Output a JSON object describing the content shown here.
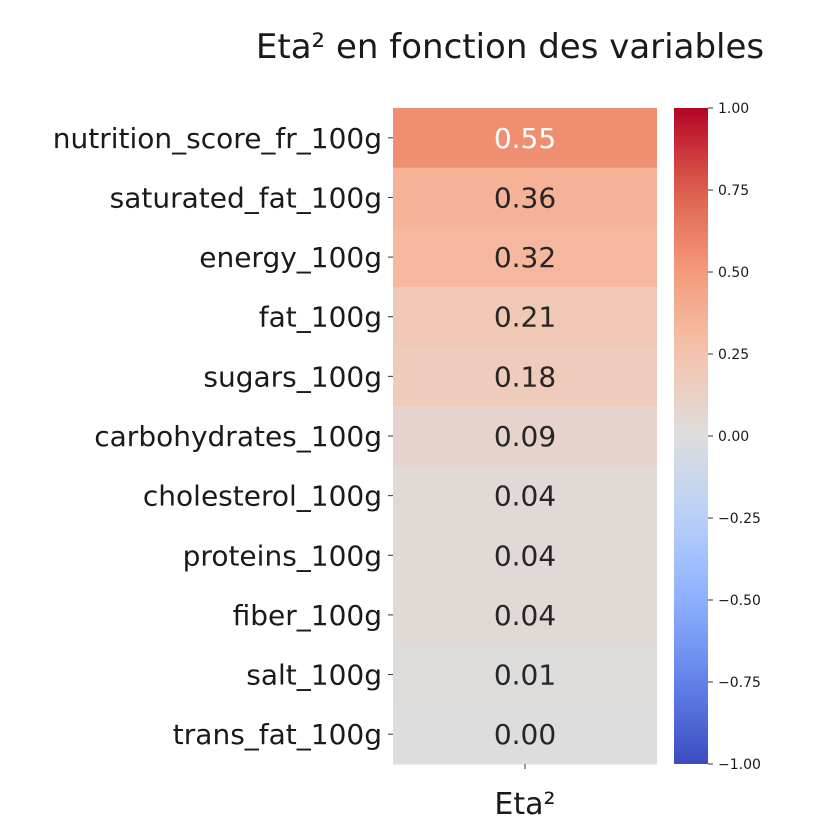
{
  "chart_data": {
    "type": "heatmap",
    "title": "Eta² en fonction des variables",
    "xlabel": "",
    "ylabel": "",
    "columns": [
      "Eta²"
    ],
    "rows": [
      "nutrition_score_fr_100g",
      "saturated_fat_100g",
      "energy_100g",
      "fat_100g",
      "sugars_100g",
      "carbohydrates_100g",
      "cholesterol_100g",
      "proteins_100g",
      "fiber_100g",
      "salt_100g",
      "trans_fat_100g"
    ],
    "values": [
      0.55,
      0.36,
      0.32,
      0.21,
      0.18,
      0.09,
      0.04,
      0.04,
      0.04,
      0.01,
      0.0
    ],
    "cell_labels": [
      "0.55",
      "0.36",
      "0.32",
      "0.21",
      "0.18",
      "0.09",
      "0.04",
      "0.04",
      "0.04",
      "0.01",
      "0.00"
    ],
    "colormap": "coolwarm",
    "colorbar": {
      "range": [
        -1,
        1
      ],
      "ticks": [
        1.0,
        0.75,
        0.5,
        0.25,
        0.0,
        -0.25,
        -0.5,
        -0.75,
        -1.0
      ],
      "tick_labels": [
        "1.00",
        "0.75",
        "0.50",
        "0.25",
        "0.00",
        "−0.25",
        "−0.50",
        "−0.75",
        "−1.00"
      ],
      "position": "right"
    },
    "grid": false,
    "legend": "none"
  }
}
